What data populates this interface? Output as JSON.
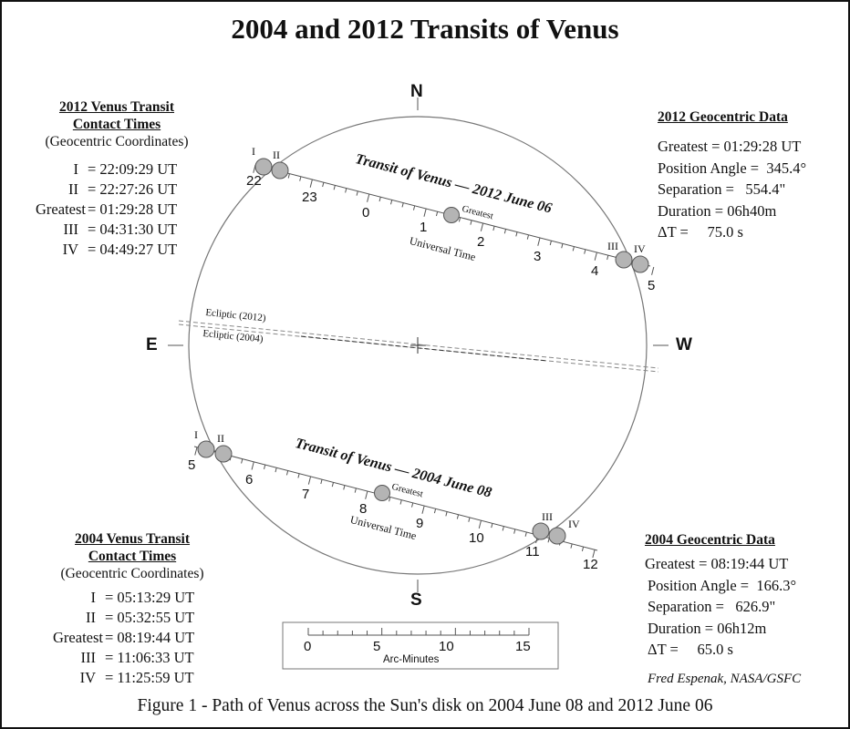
{
  "title": "2004 and 2012 Transits of Venus",
  "caption": "Figure 1 - Path of Venus across the Sun's disk on 2004 June 08 and 2012 June 06",
  "credit": "Fred Espenak, NASA/GSFC",
  "compass": {
    "north": "N",
    "south": "S",
    "east": "E",
    "west": "W"
  },
  "contacts_2012": {
    "heading_line1": "2012 Venus Transit",
    "heading_line2": "Contact Times",
    "subheading": "(Geocentric Coordinates)",
    "rows": [
      {
        "label": "I",
        "value": "= 22:09:29 UT"
      },
      {
        "label": "II",
        "value": "= 22:27:26 UT"
      },
      {
        "label": "Greatest",
        "value": "= 01:29:28 UT"
      },
      {
        "label": "III",
        "value": "= 04:31:30 UT"
      },
      {
        "label": "IV",
        "value": "= 04:49:27 UT"
      }
    ]
  },
  "contacts_2004": {
    "heading_line1": "2004 Venus Transit",
    "heading_line2": "Contact Times",
    "subheading": "(Geocentric Coordinates)",
    "rows": [
      {
        "label": "I",
        "value": "= 05:13:29 UT"
      },
      {
        "label": "II",
        "value": "= 05:32:55 UT"
      },
      {
        "label": "Greatest",
        "value": "= 08:19:44 UT"
      },
      {
        "label": "III",
        "value": "= 11:06:33 UT"
      },
      {
        "label": "IV",
        "value": "= 11:25:59 UT"
      }
    ]
  },
  "geo_2012": {
    "heading": "2012 Geocentric Data",
    "lines": [
      "Greatest = 01:29:28 UT",
      "Position Angle =  345.4°",
      "Separation =   554.4\"",
      "Duration = 06h40m",
      "ΔT =     75.0 s"
    ]
  },
  "geo_2004": {
    "heading": "2004 Geocentric Data",
    "lines": [
      "Greatest = 08:19:44 UT",
      "Position Angle =  166.3°",
      "Separation =   626.9\"",
      "Duration = 06h12m",
      "ΔT =     65.0 s"
    ]
  },
  "path_2012": {
    "label": "Transit of Venus — 2012 June 06",
    "axis_label": "Universal Time",
    "greatest_label": "Greatest",
    "hour_labels": [
      "22",
      "23",
      "0",
      "1",
      "2",
      "3",
      "4",
      "5"
    ],
    "contact_labels": [
      "I",
      "II",
      "III",
      "IV"
    ]
  },
  "path_2004": {
    "label": "Transit of Venus — 2004 June 08",
    "axis_label": "Universal Time",
    "greatest_label": "Greatest",
    "hour_labels": [
      "5",
      "6",
      "7",
      "8",
      "9",
      "10",
      "11",
      "12"
    ],
    "contact_labels": [
      "I",
      "II",
      "III",
      "IV"
    ]
  },
  "ecliptic": {
    "label_2012": "Ecliptic (2012)",
    "label_2004": "Ecliptic (2004)"
  },
  "scale_bar": {
    "labels": [
      "0",
      "5",
      "10",
      "15"
    ],
    "unit": "Arc-Minutes"
  },
  "colors": {
    "disk_fill": "#b4b4b4",
    "line": "#555555",
    "circle": "#777777"
  }
}
